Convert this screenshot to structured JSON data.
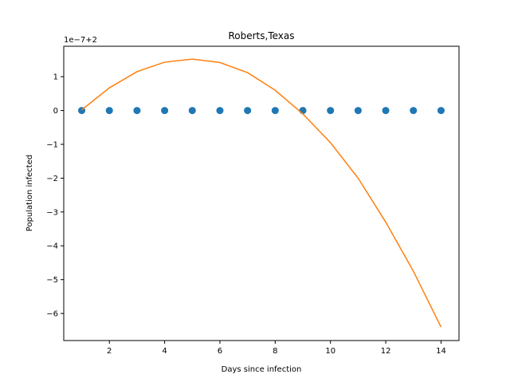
{
  "chart_data": {
    "type": "scatter",
    "title": "Roberts,Texas",
    "xlabel": "Days since infection",
    "ylabel": "Population infected",
    "y_offset_text": "1e−7+2",
    "xlim": [
      0.35,
      14.65
    ],
    "ylim": [
      -6.8,
      1.9
    ],
    "x_ticks": [
      2,
      4,
      6,
      8,
      10,
      12,
      14
    ],
    "x_tick_labels": [
      "2",
      "4",
      "6",
      "8",
      "10",
      "12",
      "14"
    ],
    "y_ticks": [
      -6,
      -5,
      -4,
      -3,
      -2,
      -1,
      0,
      1
    ],
    "y_tick_labels": [
      "−6",
      "−5",
      "−4",
      "−3",
      "−2",
      "−1",
      "0",
      "1"
    ],
    "grid": false,
    "series": [
      {
        "kind": "points",
        "color": "#1f77b4",
        "x": [
          1,
          2,
          3,
          4,
          5,
          6,
          7,
          8,
          9,
          10,
          11,
          12,
          13,
          14
        ],
        "y": [
          0,
          0,
          0,
          0,
          0,
          0,
          0,
          0,
          0,
          0,
          0,
          0,
          0,
          0
        ]
      },
      {
        "kind": "line",
        "color": "#ff7f0e",
        "x": [
          1,
          2,
          3,
          4,
          5,
          6,
          7,
          8,
          9,
          10,
          11,
          12,
          13,
          14
        ],
        "y": [
          0.02,
          0.67,
          1.15,
          1.43,
          1.52,
          1.42,
          1.12,
          0.6,
          -0.1,
          -0.95,
          -2.0,
          -3.3,
          -4.75,
          -6.4
        ]
      }
    ]
  }
}
